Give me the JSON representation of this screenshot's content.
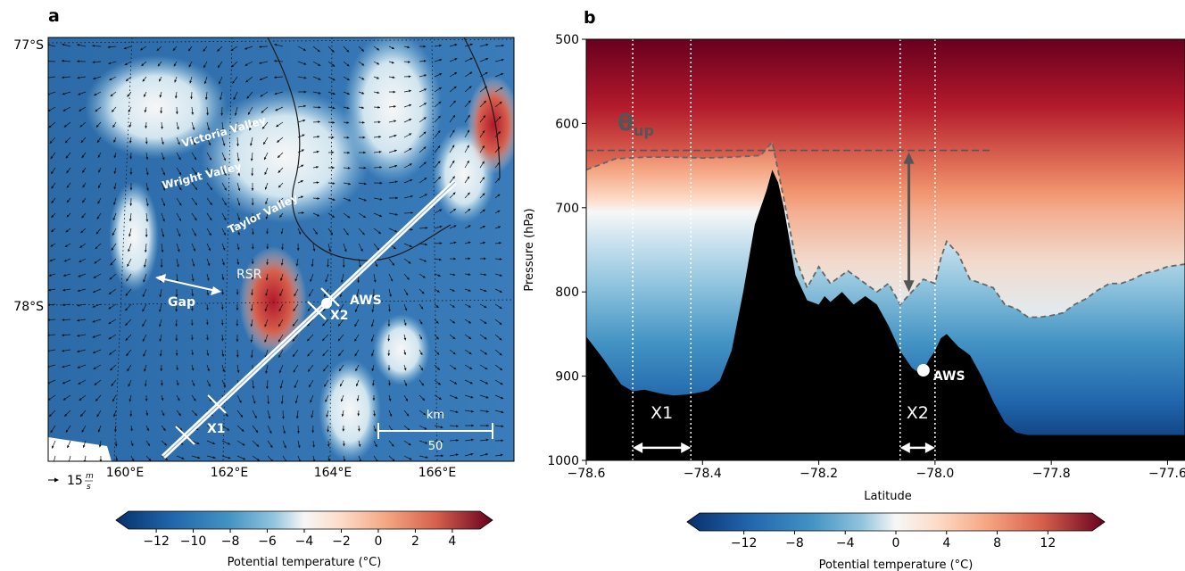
{
  "chart_data": [
    {
      "panel": "a",
      "type": "heatmap",
      "description_kind": "map",
      "x_ticks": [
        "160°E",
        "162°E",
        "164°E",
        "166°E"
      ],
      "y_ticks": [
        "77°S",
        "78°S"
      ],
      "annotations": {
        "victoria": "Victoria Valley",
        "wright": "Wright Valley",
        "taylor": "Taylor Valley",
        "rsr": "RSR",
        "gap": "Gap",
        "aws": "AWS",
        "x1": "X1",
        "x2": "X2",
        "scale_unit": "km",
        "scale_value": "50"
      },
      "wind_key": {
        "value": "15",
        "unit_num": "m",
        "unit_den": "s"
      },
      "colorbar": {
        "ticks": [
          "−12",
          "−10",
          "−8",
          "−6",
          "−4",
          "−2",
          "0",
          "2",
          "4"
        ],
        "tick_values": [
          -12,
          -10,
          -8,
          -6,
          -4,
          -2,
          0,
          2,
          4
        ],
        "range": [
          -13.5,
          5.5
        ],
        "label": "Potential temperature (°C)"
      },
      "colors": {
        "cold": "#08306b",
        "neutral": "#f7f7f7",
        "warm": "#67001f"
      }
    },
    {
      "panel": "b",
      "type": "area",
      "x_ticks": [
        "−78.6",
        "−78.4",
        "−78.2",
        "−78.0",
        "−77.8",
        "−77.6"
      ],
      "x_tick_values": [
        -78.6,
        -78.4,
        -78.2,
        -78.0,
        -77.8,
        -77.6
      ],
      "xlim": [
        -78.6,
        -77.57
      ],
      "y_ticks": [
        "500",
        "600",
        "700",
        "800",
        "900",
        "1000"
      ],
      "y_tick_values": [
        500,
        600,
        700,
        800,
        900,
        1000
      ],
      "ylim": [
        1000,
        500
      ],
      "xlabel": "Latitude",
      "ylabel": "Pressure (hPa)",
      "annotations": {
        "theta": "θ",
        "theta_sub": "up",
        "aws": "AWS",
        "x1": "X1",
        "x2": "X2"
      },
      "theta_up_pressure": 632,
      "aws_point": {
        "lat": -78.02,
        "p": 893
      },
      "x1_range": [
        -78.52,
        -78.42
      ],
      "x2_range": [
        -78.06,
        -78.0
      ],
      "terrain": {
        "lat": [
          -78.6,
          -78.57,
          -78.54,
          -78.52,
          -78.5,
          -78.47,
          -78.45,
          -78.43,
          -78.41,
          -78.39,
          -78.37,
          -78.35,
          -78.33,
          -78.31,
          -78.29,
          -78.28,
          -78.27,
          -78.26,
          -78.25,
          -78.24,
          -78.22,
          -78.2,
          -78.19,
          -78.18,
          -78.16,
          -78.14,
          -78.12,
          -78.1,
          -78.08,
          -78.06,
          -78.05,
          -78.04,
          -78.03,
          -78.02,
          -78.01,
          -78.0,
          -77.99,
          -77.98,
          -77.96,
          -77.94,
          -77.92,
          -77.9,
          -77.88,
          -77.86,
          -77.84,
          -77.8,
          -77.75,
          -77.7,
          -77.65,
          -77.6,
          -77.57
        ],
        "p": [
          853,
          880,
          910,
          918,
          916,
          921,
          923,
          922,
          920,
          917,
          905,
          870,
          800,
          720,
          680,
          655,
          670,
          700,
          740,
          780,
          810,
          815,
          805,
          812,
          800,
          815,
          805,
          815,
          840,
          870,
          880,
          890,
          895,
          893,
          880,
          870,
          855,
          850,
          865,
          875,
          900,
          930,
          955,
          967,
          970,
          970,
          970,
          970,
          970,
          970,
          970
        ]
      },
      "zero_contour": {
        "lat": [
          -78.6,
          -78.55,
          -78.5,
          -78.45,
          -78.4,
          -78.35,
          -78.3,
          -78.28,
          -78.26,
          -78.24,
          -78.22,
          -78.2,
          -78.18,
          -78.15,
          -78.12,
          -78.1,
          -78.08,
          -78.06,
          -78.04,
          -78.02,
          -78.0,
          -77.99,
          -77.98,
          -77.96,
          -77.94,
          -77.92,
          -77.9,
          -77.88,
          -77.86,
          -77.84,
          -77.82,
          -77.8,
          -77.78,
          -77.76,
          -77.74,
          -77.72,
          -77.7,
          -77.68,
          -77.66,
          -77.64,
          -77.62,
          -77.6,
          -77.57
        ],
        "p": [
          655,
          642,
          640,
          640,
          641,
          640,
          638,
          622,
          690,
          760,
          795,
          770,
          790,
          775,
          790,
          800,
          790,
          815,
          800,
          785,
          790,
          760,
          740,
          755,
          785,
          790,
          795,
          815,
          820,
          830,
          830,
          828,
          825,
          815,
          808,
          798,
          790,
          790,
          785,
          778,
          775,
          770,
          767
        ]
      },
      "colorbar": {
        "ticks": [
          "−12",
          "−8",
          "−4",
          "0",
          "4",
          "8",
          "12"
        ],
        "tick_values": [
          -12,
          -8,
          -4,
          0,
          4,
          8,
          12
        ],
        "range": [
          -15.5,
          15.5
        ],
        "label": "Potential temperature (°C)"
      },
      "colors": {
        "cold": "#08306b",
        "neutral": "#f7f7f7",
        "warm": "#67001f",
        "terrain": "#000000",
        "contour": "#666666"
      }
    }
  ]
}
